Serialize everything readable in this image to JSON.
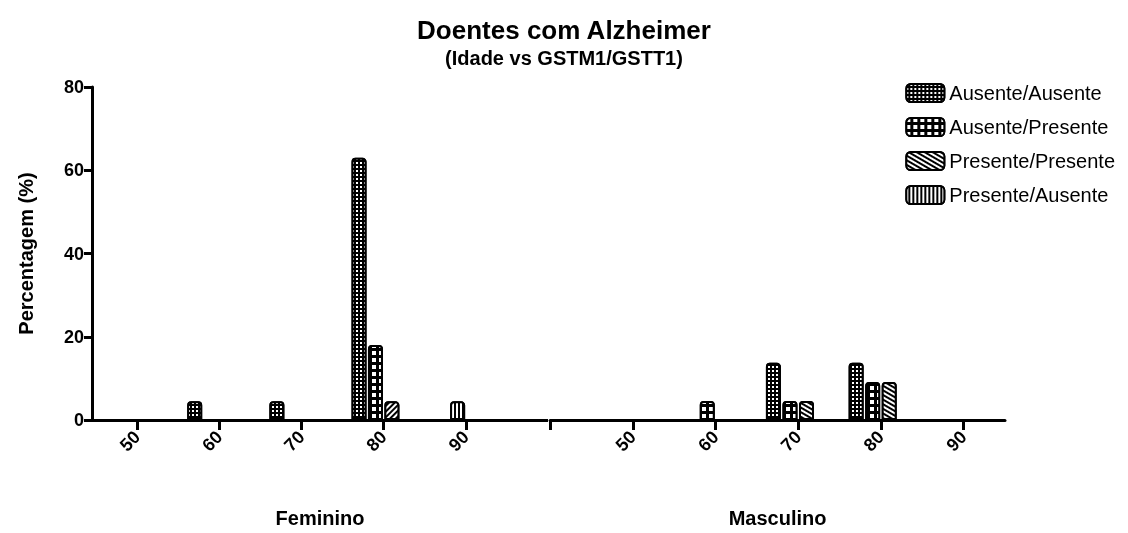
{
  "chart_data": [
    {
      "type": "bar",
      "title": "Doentes com Alzheimer",
      "subtitle": "(Idade vs GSTM1/GSTT1)",
      "xlabel": "Feminino",
      "ylabel": "Percentagem (%)",
      "xlim": [
        44.5,
        100
      ],
      "xticks": [
        50,
        60,
        70,
        80,
        90
      ],
      "ylim": [
        0,
        80
      ],
      "yticks": [
        0,
        20,
        40,
        60,
        80
      ],
      "grid": false,
      "legend": false,
      "series": [
        {
          "color": "#000000",
          "x": [
            57,
            67,
            77
          ],
          "values": [
            4.5,
            4.5,
            63
          ]
        },
        {
          "color": "#000000",
          "x": [
            79
          ],
          "values": [
            18
          ]
        },
        {
          "color": "#000000",
          "x": [
            81
          ],
          "values": [
            4.5
          ]
        },
        {
          "color": "#000000",
          "x": [
            89
          ],
          "values": [
            4.5
          ]
        }
      ]
    },
    {
      "type": "bar",
      "xlabel": "Masculino",
      "xlim": [
        40,
        95
      ],
      "xticks": [
        {
          "value": 40,
          "label": null
        },
        50,
        60,
        70,
        80,
        90
      ],
      "ylim": [
        0,
        80
      ],
      "tick_labels": "x",
      "grid": false,
      "legend": "top right",
      "series": [
        {
          "name": "Ausente/Ausente",
          "color": "#000000",
          "x": [
            67,
            77
          ],
          "values": [
            13.6,
            13.6
          ]
        },
        {
          "name": "Ausente/Presente",
          "color": "#000000",
          "x": [
            59,
            69,
            79
          ],
          "values": [
            4.5,
            4.5,
            9
          ]
        },
        {
          "name": "Presente/Presente",
          "color": "#000000",
          "x": [
            71,
            81
          ],
          "values": [
            4.5,
            9
          ]
        },
        {
          "name": "Presente/Ausente",
          "color": "#000000"
        }
      ]
    }
  ]
}
